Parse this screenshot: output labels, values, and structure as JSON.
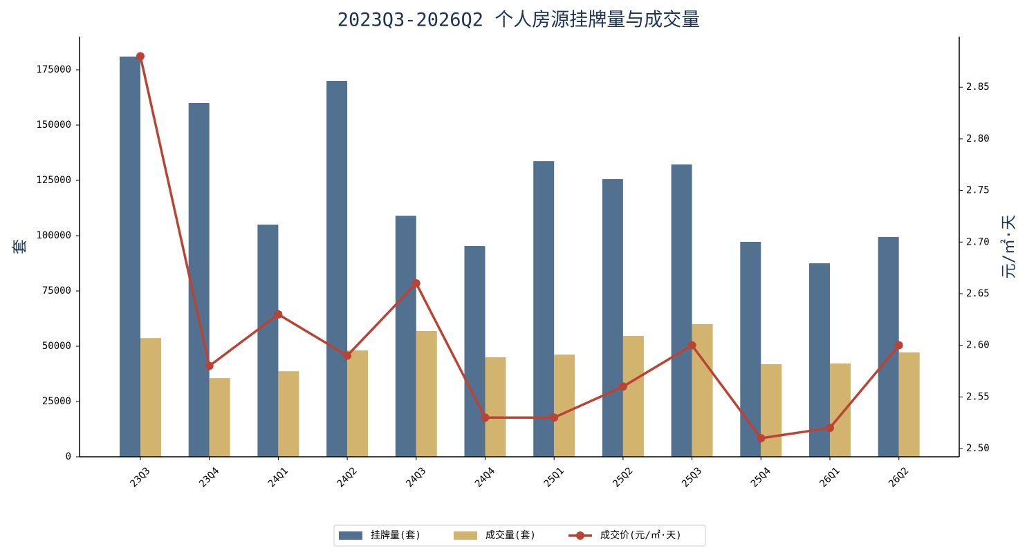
{
  "chart_data": {
    "type": "bar",
    "title": "2023Q3-2026Q2 个人房源挂牌量与成交量",
    "ylabel": "套",
    "y2label": "元/㎡·天",
    "categories": [
      "23Q3",
      "23Q4",
      "24Q1",
      "24Q2",
      "24Q3",
      "24Q4",
      "25Q1",
      "25Q2",
      "25Q3",
      "25Q4",
      "26Q1",
      "26Q2"
    ],
    "series": [
      {
        "name": "挂牌量(套)",
        "color": "#52708f",
        "type": "bar",
        "values": [
          181000,
          160000,
          105000,
          170000,
          109000,
          95300,
          133700,
          125600,
          132200,
          97200,
          87500,
          99400
        ]
      },
      {
        "name": "成交量(套)",
        "color": "#d2b46e",
        "type": "bar",
        "values": [
          53700,
          35600,
          38700,
          48100,
          56900,
          45000,
          46200,
          54700,
          60000,
          41900,
          42200,
          47200
        ]
      },
      {
        "name": "成交价(元/㎡·天)",
        "color": "#b94434",
        "type": "line",
        "axis": "y2",
        "values": [
          2.88,
          2.58,
          2.63,
          2.59,
          2.66,
          2.53,
          2.53,
          2.56,
          2.6,
          2.51,
          2.52,
          2.6
        ]
      }
    ],
    "ylim": [
      0,
      190000
    ],
    "yticks": [
      0,
      25000,
      50000,
      75000,
      100000,
      125000,
      150000,
      175000
    ],
    "y2lim": [
      2.492,
      2.899
    ],
    "y2ticks": [
      {
        "value": 2.5,
        "label": "2.50"
      },
      {
        "value": 2.55,
        "label": "2.55"
      },
      {
        "value": 2.6,
        "label": "2.60"
      },
      {
        "value": 2.65,
        "label": "2.65"
      },
      {
        "value": 2.7,
        "label": "2.70"
      },
      {
        "value": 2.75,
        "label": "2.75"
      },
      {
        "value": 2.8,
        "label": "2.80"
      },
      {
        "value": 2.85,
        "label": "2.85"
      }
    ],
    "grid": false,
    "legend": "bottom"
  }
}
